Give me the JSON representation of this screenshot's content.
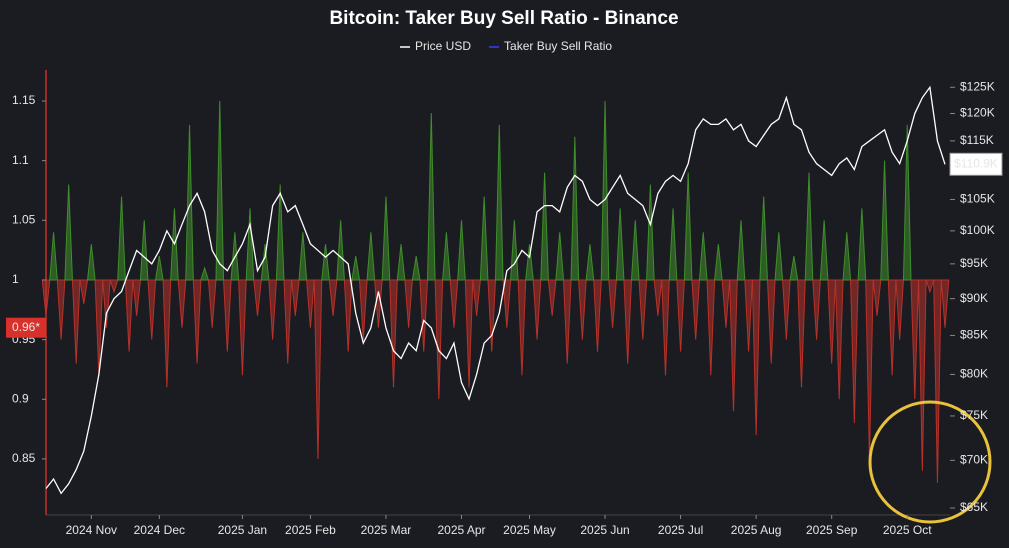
{
  "chart_data": {
    "type": "dual",
    "title": "Bitcoin: Taker Buy Sell Ratio - Binance",
    "categories": [
      null,
      null,
      null,
      null,
      null,
      null,
      "2024 Nov",
      null,
      null,
      null,
      null,
      null,
      null,
      null,
      null,
      "2024 Dec",
      null,
      null,
      null,
      null,
      null,
      null,
      null,
      null,
      null,
      null,
      "2025 Jan",
      null,
      null,
      null,
      null,
      null,
      null,
      null,
      null,
      "2025 Feb",
      null,
      null,
      null,
      null,
      null,
      null,
      null,
      null,
      null,
      "2025 Mar",
      null,
      null,
      null,
      null,
      null,
      null,
      null,
      null,
      null,
      "2025 Apr",
      null,
      null,
      null,
      null,
      null,
      null,
      null,
      null,
      "2025 May",
      null,
      null,
      null,
      null,
      null,
      null,
      null,
      null,
      null,
      "2025 Jun",
      null,
      null,
      null,
      null,
      null,
      null,
      null,
      null,
      null,
      "2025 Jul",
      null,
      null,
      null,
      null,
      null,
      null,
      null,
      null,
      null,
      "2025 Aug",
      null,
      null,
      null,
      null,
      null,
      null,
      null,
      null,
      null,
      "2025 Sep",
      null,
      null,
      null,
      null,
      null,
      null,
      null,
      null,
      null,
      "2025 Oct",
      null,
      null,
      null,
      null,
      null
    ],
    "series": [
      {
        "name": "Price USD",
        "color": "#ffffff",
        "axis": "y2",
        "kind": "line",
        "values": [
          67000,
          68000,
          66500,
          67500,
          69000,
          71000,
          75000,
          80000,
          88000,
          90000,
          91000,
          94000,
          97000,
          96000,
          95000,
          97000,
          100000,
          98000,
          101000,
          104000,
          106000,
          103000,
          97000,
          95000,
          94000,
          96000,
          98000,
          101000,
          94000,
          96000,
          104000,
          106000,
          103000,
          104000,
          101000,
          98000,
          97000,
          96000,
          97000,
          96000,
          95000,
          88000,
          84000,
          86000,
          91000,
          86000,
          83000,
          82000,
          84000,
          83000,
          87000,
          86000,
          83000,
          82000,
          84000,
          79000,
          77000,
          80000,
          84000,
          85000,
          88000,
          94000,
          95000,
          97000,
          96000,
          103000,
          104000,
          104000,
          103000,
          107000,
          109000,
          108000,
          105000,
          104000,
          105000,
          107000,
          109000,
          106000,
          105000,
          104000,
          101000,
          106000,
          108000,
          109000,
          108000,
          111000,
          117000,
          119000,
          118000,
          118000,
          119000,
          117000,
          118000,
          115000,
          114000,
          116000,
          118000,
          119000,
          123000,
          118000,
          117000,
          113000,
          111000,
          110000,
          109000,
          111000,
          112000,
          110000,
          114000,
          115000,
          116000,
          117000,
          113000,
          111000,
          115000,
          120000,
          123000,
          125000,
          115000,
          110900
        ]
      },
      {
        "name": "Taker Buy Sell Ratio",
        "color": "#3b3bff",
        "axis": "y",
        "kind": "spikes",
        "up_color": "#3f8f2a",
        "down_color": "#b83228",
        "baseline": 1,
        "values": [
          0.97,
          1.04,
          0.95,
          1.08,
          0.93,
          0.98,
          1.03,
          0.92,
          0.96,
          0.99,
          1.07,
          0.94,
          0.97,
          1.05,
          0.95,
          1.02,
          0.91,
          1.06,
          0.96,
          1.13,
          0.93,
          1.01,
          0.96,
          1.15,
          0.94,
          1.04,
          0.92,
          1.06,
          0.97,
          1.03,
          0.95,
          1.08,
          0.93,
          0.97,
          1.04,
          0.96,
          0.85,
          1.03,
          0.97,
          1.05,
          0.94,
          1.02,
          0.95,
          1.04,
          0.96,
          1.07,
          0.91,
          1.03,
          0.96,
          1.02,
          0.94,
          1.14,
          0.9,
          1.04,
          0.96,
          1.05,
          0.91,
          0.97,
          1.07,
          0.94,
          1.13,
          0.96,
          1.05,
          0.92,
          1.03,
          0.95,
          1.09,
          0.97,
          1.04,
          0.93,
          1.12,
          0.95,
          1.03,
          0.94,
          1.15,
          0.96,
          1.06,
          0.93,
          1.05,
          0.95,
          1.08,
          0.97,
          0.92,
          1.06,
          0.94,
          1.09,
          0.95,
          1.04,
          0.92,
          1.03,
          0.96,
          0.89,
          1.05,
          0.94,
          0.87,
          1.07,
          0.93,
          1.04,
          0.95,
          1.02,
          0.91,
          1.09,
          0.95,
          1.05,
          0.93,
          0.9,
          1.04,
          0.88,
          1.06,
          0.85,
          0.97,
          1.1,
          0.92,
          0.95,
          1.13,
          0.9,
          0.84,
          0.99,
          0.83,
          0.96
        ]
      }
    ],
    "ylim": [
      0.803,
      1.176
    ],
    "yticks": [
      0.85,
      0.9,
      0.95,
      1,
      1.05,
      1.1,
      1.15
    ],
    "y2lim": [
      64300,
      128400
    ],
    "y2log": true,
    "y2ticks": [
      {
        "value": 65000,
        "label": "$65K"
      },
      {
        "value": 70000,
        "label": "$70K"
      },
      {
        "value": 75000,
        "label": "$75K"
      },
      {
        "value": 80000,
        "label": "$80K"
      },
      {
        "value": 85000,
        "label": "$85K"
      },
      {
        "value": 90000,
        "label": "$90K"
      },
      {
        "value": 95000,
        "label": "$95K"
      },
      {
        "value": 100000,
        "label": "$100K"
      },
      {
        "value": 105000,
        "label": "$105K"
      },
      {
        "value": 115000,
        "label": "$115K"
      },
      {
        "value": 120000,
        "label": "$120K"
      },
      {
        "value": 125000,
        "label": "$125K"
      }
    ],
    "current_labels": [
      {
        "value": 0.96,
        "label": "0.96*",
        "axis": "y",
        "color": "#d8302a"
      },
      {
        "value": 110900,
        "label": "$110.9K",
        "axis": "y2",
        "color": "#ffffff"
      }
    ],
    "legend": "top"
  }
}
